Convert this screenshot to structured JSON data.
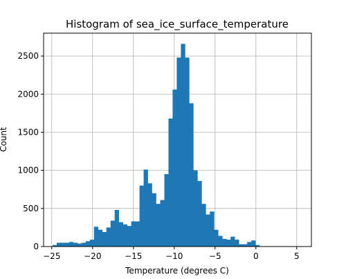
{
  "chart_data": {
    "type": "bar",
    "title": "Histogram of sea_ice_surface_temperature",
    "xlabel": "Temperature (degrees C)",
    "ylabel": "Count",
    "xlim": [
      -26.0,
      6.8
    ],
    "ylim": [
      0,
      2800
    ],
    "xticks": [
      -25,
      -20,
      -15,
      -10,
      -5,
      0,
      5
    ],
    "xtick_labels": [
      "−25",
      "−20",
      "−15",
      "−10",
      "−5",
      "0",
      "5"
    ],
    "yticks": [
      0,
      500,
      1000,
      1500,
      2000,
      2500
    ],
    "ytick_labels": [
      "0",
      "500",
      "1000",
      "1500",
      "2000",
      "2500"
    ],
    "grid": true,
    "bar_color": "#1f77b4",
    "bin_start": -24.9,
    "bin_width": 0.507,
    "counts": [
      20,
      50,
      50,
      50,
      60,
      50,
      40,
      50,
      70,
      90,
      260,
      220,
      190,
      250,
      340,
      480,
      320,
      290,
      270,
      330,
      330,
      800,
      1010,
      830,
      700,
      560,
      610,
      950,
      1680,
      2060,
      2480,
      2660,
      2480,
      1880,
      1000,
      860,
      560,
      420,
      460,
      220,
      140,
      100,
      90,
      130,
      90,
      30,
      30,
      60,
      80,
      20,
      5,
      5,
      5,
      5,
      5,
      5,
      5,
      5,
      5,
      5
    ]
  }
}
